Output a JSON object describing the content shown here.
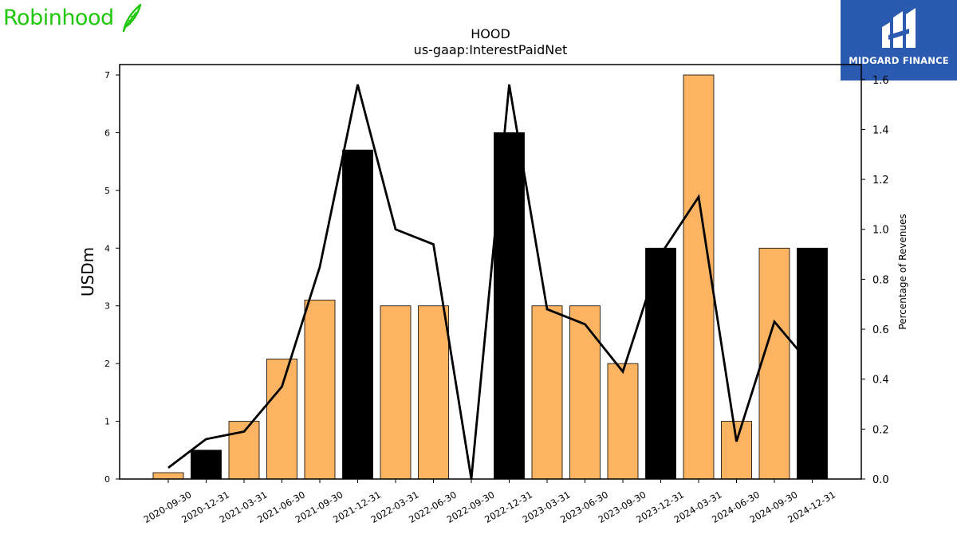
{
  "logos": {
    "left_text": "Robinhood",
    "right_text": "MIDGARD FINANCE",
    "left_color": "#1fc70a",
    "right_bg": "#2a5bb0"
  },
  "chart_data": {
    "type": "bar",
    "title": "HOOD",
    "subtitle": "us-gaap:InterestPaidNet",
    "ylabel": "USDm",
    "y2label": "Percentage of Revenues",
    "categories": [
      "2020-09-30",
      "2020-12-31",
      "2021-03-31",
      "2021-06-30",
      "2021-09-30",
      "2021-12-31",
      "2022-03-31",
      "2022-06-30",
      "2022-09-30",
      "2022-12-31",
      "2023-03-31",
      "2023-06-30",
      "2023-09-30",
      "2023-12-31",
      "2024-03-31",
      "2024-06-30",
      "2024-09-30",
      "2024-12-31"
    ],
    "series": [
      {
        "values": [
          0.11,
          0.5,
          1.0,
          2.08,
          3.1,
          5.7,
          3.0,
          3.0,
          0.0,
          6.0,
          3.0,
          3.0,
          2.0,
          4.0,
          7.0,
          1.0,
          4.0,
          4.0
        ],
        "colors": [
          "#fdb462",
          "#000000",
          "#fdb462",
          "#fdb462",
          "#fdb462",
          "#000000",
          "#fdb462",
          "#fdb462",
          "#fdb462",
          "#000000",
          "#fdb462",
          "#fdb462",
          "#fdb462",
          "#000000",
          "#fdb462",
          "#fdb462",
          "#fdb462",
          "#000000"
        ]
      },
      {
        "type": "line",
        "axis": "right",
        "values": [
          0.045,
          0.16,
          0.19,
          0.37,
          0.85,
          1.58,
          1.0,
          0.94,
          0.0,
          1.58,
          0.68,
          0.62,
          0.43,
          0.9,
          1.13,
          0.15,
          0.63,
          0.45
        ],
        "color": "#000000"
      }
    ],
    "ylim": [
      0,
      7.18
    ],
    "y2lim": [
      0,
      1.66
    ],
    "yticks": [
      "0",
      "1",
      "2",
      "3",
      "4",
      "5",
      "6",
      "7"
    ],
    "y2ticks": [
      "0.0",
      "0.2",
      "0.4",
      "0.6",
      "0.8",
      "1.0",
      "1.2",
      "1.4",
      "1.6"
    ],
    "grid": false
  }
}
